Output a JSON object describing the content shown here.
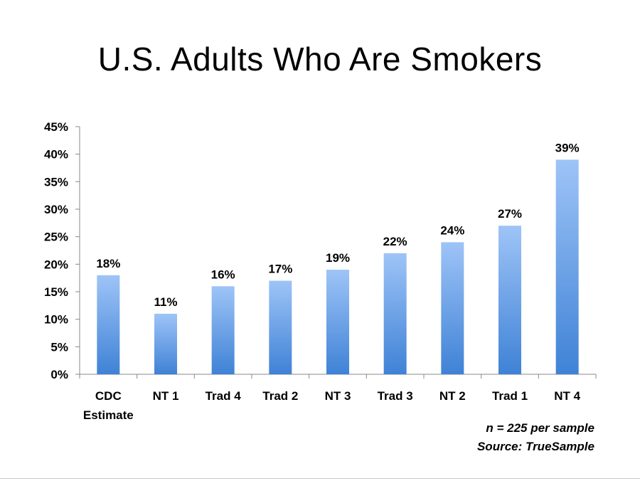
{
  "chart_data": {
    "type": "bar",
    "title": "U.S. Adults Who Are Smokers",
    "categories": [
      [
        "CDC",
        "Estimate"
      ],
      [
        "NT 1"
      ],
      [
        "Trad 4"
      ],
      [
        "Trad 2"
      ],
      [
        "NT 3"
      ],
      [
        "Trad 3"
      ],
      [
        "NT 2"
      ],
      [
        "Trad 1"
      ],
      [
        "NT 4"
      ]
    ],
    "values": [
      18,
      11,
      16,
      17,
      19,
      22,
      24,
      27,
      39
    ],
    "data_labels": [
      "18%",
      "11%",
      "16%",
      "17%",
      "19%",
      "22%",
      "24%",
      "27%",
      "39%"
    ],
    "ylim": [
      0,
      45
    ],
    "yticks": [
      0,
      5,
      10,
      15,
      20,
      25,
      30,
      35,
      40,
      45
    ],
    "ytick_labels": [
      "0%",
      "5%",
      "10%",
      "15%",
      "20%",
      "25%",
      "30%",
      "35%",
      "40%",
      "45%"
    ],
    "grid": false,
    "bar_color_top": "#9ec4f7",
    "bar_color_bottom": "#3f82d6"
  },
  "notes": {
    "sample_size": "n = 225 per sample",
    "source": "Source: TrueSample"
  }
}
